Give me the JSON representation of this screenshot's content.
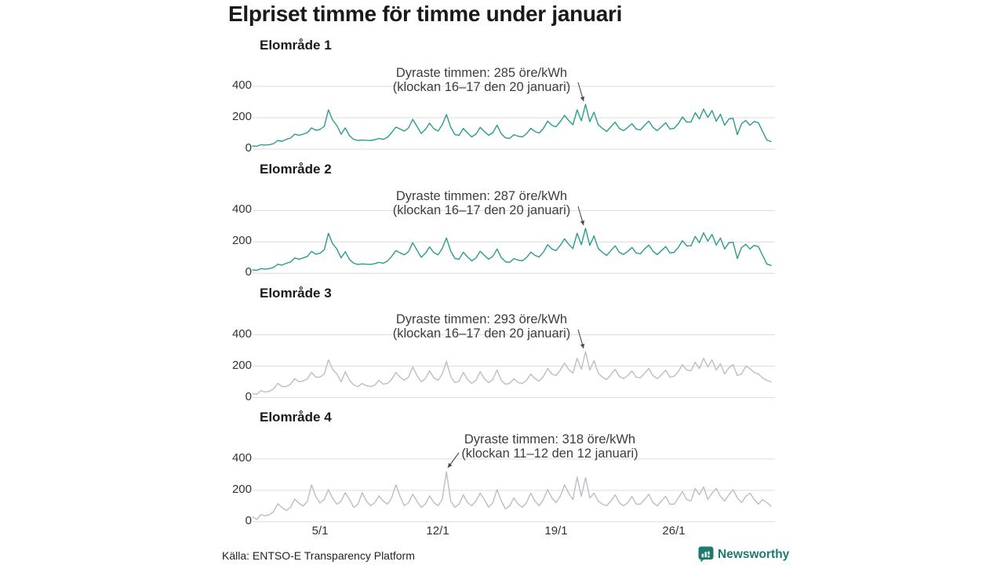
{
  "title": "Elpriset timme för timme under januari",
  "panels": [
    {
      "label": "Elområde 1",
      "annotation_line1": "Dyraste timmen: 285 öre/kWh",
      "annotation_line2": "(klockan 16–17 den 20 januari)"
    },
    {
      "label": "Elområde 2",
      "annotation_line1": "Dyraste timmen: 287 öre/kWh",
      "annotation_line2": "(klockan 16–17 den 20 januari)"
    },
    {
      "label": "Elområde 3",
      "annotation_line1": "Dyraste timmen: 293 öre/kWh",
      "annotation_line2": "(klockan 16–17 den 20 januari)"
    },
    {
      "label": "Elområde 4",
      "annotation_line1": "Dyraste timmen: 318 öre/kWh",
      "annotation_line2": "(klockan 11–12 den 12 januari)"
    }
  ],
  "footer": {
    "source": "Källa: ENTSO-E Transparency Platform",
    "brand": "Newsworthy"
  },
  "colors": {
    "teal": "#2a9c8d",
    "gray": "#bcbdc9",
    "brand": "#1d7a6f",
    "gridline": "#dcdcdc",
    "arrow": "#4a4a4a"
  },
  "chart_data": {
    "type": "line",
    "title": "Elpriset timme för timme under januari",
    "x_unit": "dag i januari (4 mätpunkter per dygn, kl 00/06/12/18)",
    "ylabel": "öre/kWh",
    "ylim": [
      0,
      450
    ],
    "yticks": [
      0,
      200,
      400
    ],
    "grid": "horizontal",
    "legend": "none",
    "x_ticks": [
      {
        "day": 5,
        "label": "5/1"
      },
      {
        "day": 12,
        "label": "12/1"
      },
      {
        "day": 19,
        "label": "19/1"
      },
      {
        "day": 26,
        "label": "26/1"
      }
    ],
    "series": [
      {
        "name": "Elområde 1",
        "color": "#2a9c8d",
        "peak": {
          "value": 285,
          "time": "klockan 16–17 den 20 januari"
        },
        "values": [
          20,
          18,
          28,
          26,
          28,
          35,
          55,
          50,
          62,
          70,
          95,
          88,
          95,
          105,
          135,
          120,
          125,
          145,
          250,
          185,
          150,
          95,
          135,
          85,
          62,
          55,
          58,
          56,
          55,
          60,
          68,
          62,
          75,
          105,
          140,
          128,
          115,
          135,
          190,
          145,
          100,
          125,
          165,
          130,
          115,
          155,
          220,
          140,
          92,
          88,
          132,
          102,
          78,
          95,
          138,
          112,
          88,
          105,
          152,
          98,
          72,
          68,
          92,
          82,
          78,
          98,
          132,
          112,
          102,
          132,
          178,
          152,
          142,
          175,
          215,
          182,
          155,
          250,
          180,
          285,
          175,
          235,
          155,
          132,
          112,
          142,
          172,
          132,
          118,
          138,
          162,
          128,
          122,
          152,
          178,
          138,
          118,
          142,
          168,
          128,
          132,
          162,
          205,
          172,
          172,
          232,
          192,
          255,
          202,
          245,
          178,
          222,
          152,
          192,
          196,
          92,
          162,
          182,
          152,
          176,
          168,
          112,
          58,
          48
        ]
      },
      {
        "name": "Elområde 2",
        "color": "#2a9c8d",
        "peak": {
          "value": 287,
          "time": "klockan 16–17 den 20 januari"
        },
        "values": [
          22,
          19,
          30,
          27,
          30,
          38,
          58,
          52,
          64,
          72,
          98,
          90,
          98,
          108,
          140,
          122,
          128,
          150,
          255,
          188,
          155,
          98,
          138,
          88,
          64,
          57,
          60,
          58,
          57,
          62,
          70,
          64,
          78,
          108,
          145,
          130,
          118,
          138,
          195,
          148,
          102,
          128,
          168,
          132,
          118,
          158,
          225,
          142,
          94,
          90,
          135,
          104,
          80,
          98,
          140,
          114,
          90,
          108,
          155,
          100,
          74,
          70,
          94,
          84,
          80,
          100,
          135,
          114,
          104,
          135,
          182,
          155,
          145,
          178,
          220,
          185,
          158,
          255,
          182,
          287,
          178,
          238,
          158,
          134,
          114,
          145,
          175,
          134,
          120,
          140,
          165,
          130,
          124,
          155,
          180,
          140,
          120,
          145,
          170,
          130,
          134,
          165,
          208,
          175,
          175,
          235,
          195,
          258,
          205,
          248,
          180,
          225,
          155,
          195,
          198,
          94,
          164,
          185,
          155,
          178,
          170,
          114,
          60,
          50
        ]
      },
      {
        "name": "Elområde 3",
        "color": "#bcbdc9",
        "peak": {
          "value": 293,
          "time": "klockan 16–17 den 20 januari"
        },
        "values": [
          25,
          20,
          45,
          35,
          40,
          55,
          90,
          70,
          70,
          85,
          120,
          100,
          105,
          120,
          160,
          130,
          130,
          150,
          240,
          180,
          150,
          100,
          165,
          110,
          80,
          70,
          90,
          75,
          70,
          80,
          110,
          85,
          90,
          115,
          160,
          130,
          110,
          130,
          195,
          140,
          100,
          120,
          170,
          125,
          110,
          150,
          230,
          135,
          95,
          105,
          160,
          115,
          90,
          110,
          165,
          120,
          95,
          115,
          175,
          110,
          85,
          90,
          120,
          95,
          90,
          110,
          150,
          120,
          105,
          135,
          185,
          150,
          140,
          175,
          220,
          180,
          155,
          250,
          180,
          293,
          175,
          235,
          155,
          130,
          115,
          145,
          180,
          135,
          120,
          140,
          170,
          130,
          125,
          155,
          185,
          140,
          120,
          145,
          175,
          130,
          135,
          165,
          210,
          175,
          170,
          225,
          185,
          250,
          195,
          240,
          175,
          215,
          150,
          190,
          210,
          140,
          150,
          200,
          185,
          160,
          150,
          125,
          110,
          100
        ]
      },
      {
        "name": "Elområde 4",
        "color": "#bcbdc9",
        "peak": {
          "value": 318,
          "time": "klockan 11–12 den 12 januari"
        },
        "values": [
          30,
          15,
          45,
          38,
          45,
          65,
          115,
          90,
          72,
          92,
          145,
          118,
          100,
          130,
          235,
          160,
          120,
          142,
          205,
          150,
          112,
          132,
          185,
          142,
          92,
          112,
          185,
          132,
          102,
          122,
          165,
          132,
          112,
          152,
          235,
          162,
          102,
          122,
          175,
          132,
          92,
          112,
          165,
          122,
          102,
          142,
          318,
          132,
          92,
          112,
          172,
          122,
          102,
          132,
          182,
          142,
          92,
          122,
          205,
          132,
          82,
          102,
          152,
          112,
          92,
          122,
          182,
          132,
          102,
          142,
          205,
          152,
          122,
          162,
          235,
          182,
          142,
          285,
          162,
          282,
          152,
          182,
          132,
          112,
          102,
          132,
          172,
          122,
          102,
          122,
          162,
          112,
          112,
          142,
          175,
          122,
          102,
          132,
          162,
          112,
          112,
          152,
          192,
          142,
          132,
          212,
          172,
          222,
          142,
          182,
          212,
          162,
          132,
          172,
          205,
          152,
          122,
          162,
          182,
          142,
          112,
          142,
          122,
          100
        ]
      }
    ]
  }
}
